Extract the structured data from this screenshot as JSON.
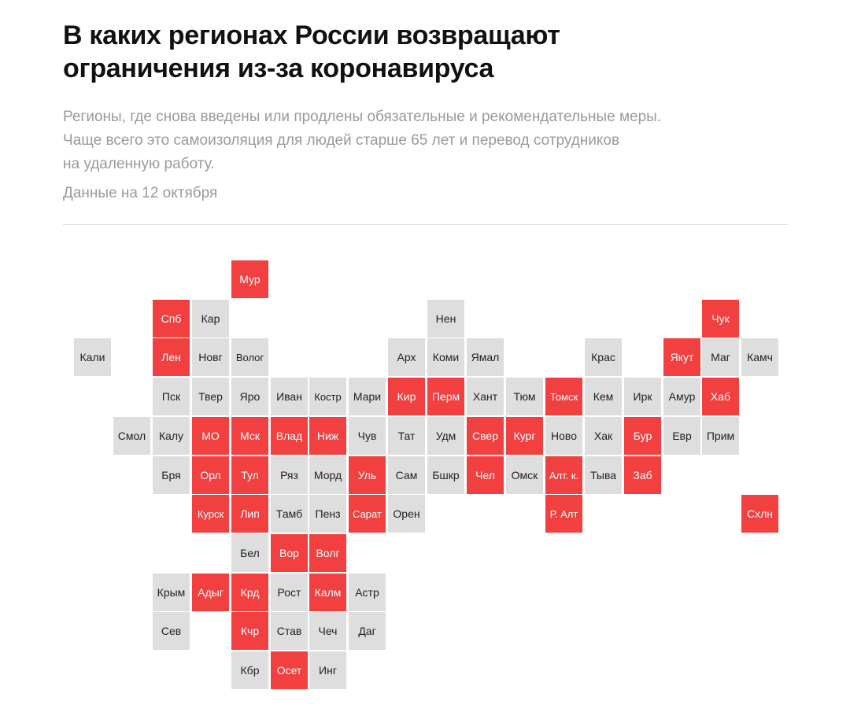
{
  "header": {
    "title_line1": "В каких регионах России возвращают",
    "title_line2": "ограничения из-за коронавируса",
    "subtitle_line1": "Регионы, где снова введены или продлены обязательные и рекомендательные меры.",
    "subtitle_line2": "Чаще всего это самоизоляция для людей старше 65 лет и перевод сотрудников",
    "subtitle_line3": "на удаленную работу.",
    "date": "Данные на 12 октября"
  },
  "colors": {
    "restricted": "#f23f3f",
    "normal": "#dedede"
  },
  "regions": [
    {
      "label": "Мур",
      "row": 0,
      "col": 4,
      "restricted": true
    },
    {
      "label": "Спб",
      "row": 1,
      "col": 2,
      "restricted": true
    },
    {
      "label": "Кар",
      "row": 1,
      "col": 3,
      "restricted": false
    },
    {
      "label": "Нен",
      "row": 1,
      "col": 9,
      "restricted": false
    },
    {
      "label": "Чук",
      "row": 1,
      "col": 16,
      "restricted": true
    },
    {
      "label": "Кали",
      "row": 2,
      "col": 0,
      "restricted": false
    },
    {
      "label": "Лен",
      "row": 2,
      "col": 2,
      "restricted": true
    },
    {
      "label": "Новг",
      "row": 2,
      "col": 3,
      "restricted": false
    },
    {
      "label": "Волог",
      "row": 2,
      "col": 4,
      "restricted": false
    },
    {
      "label": "Арх",
      "row": 2,
      "col": 8,
      "restricted": false
    },
    {
      "label": "Коми",
      "row": 2,
      "col": 9,
      "restricted": false
    },
    {
      "label": "Ямал",
      "row": 2,
      "col": 10,
      "restricted": false
    },
    {
      "label": "Крас",
      "row": 2,
      "col": 13,
      "restricted": false
    },
    {
      "label": "Якут",
      "row": 2,
      "col": 15,
      "restricted": true
    },
    {
      "label": "Маг",
      "row": 2,
      "col": 16,
      "restricted": false
    },
    {
      "label": "Камч",
      "row": 2,
      "col": 17,
      "restricted": false
    },
    {
      "label": "Пск",
      "row": 3,
      "col": 2,
      "restricted": false
    },
    {
      "label": "Твер",
      "row": 3,
      "col": 3,
      "restricted": false
    },
    {
      "label": "Яро",
      "row": 3,
      "col": 4,
      "restricted": false
    },
    {
      "label": "Иван",
      "row": 3,
      "col": 5,
      "restricted": false
    },
    {
      "label": "Костр",
      "row": 3,
      "col": 6,
      "restricted": false
    },
    {
      "label": "Мари",
      "row": 3,
      "col": 7,
      "restricted": false
    },
    {
      "label": "Кир",
      "row": 3,
      "col": 8,
      "restricted": true
    },
    {
      "label": "Перм",
      "row": 3,
      "col": 9,
      "restricted": true
    },
    {
      "label": "Хант",
      "row": 3,
      "col": 10,
      "restricted": false
    },
    {
      "label": "Тюм",
      "row": 3,
      "col": 11,
      "restricted": false
    },
    {
      "label": "Томск",
      "row": 3,
      "col": 12,
      "restricted": true
    },
    {
      "label": "Кем",
      "row": 3,
      "col": 13,
      "restricted": false
    },
    {
      "label": "Ирк",
      "row": 3,
      "col": 14,
      "restricted": false
    },
    {
      "label": "Амур",
      "row": 3,
      "col": 15,
      "restricted": false
    },
    {
      "label": "Хаб",
      "row": 3,
      "col": 16,
      "restricted": true
    },
    {
      "label": "Смол",
      "row": 4,
      "col": 1,
      "restricted": false
    },
    {
      "label": "Калу",
      "row": 4,
      "col": 2,
      "restricted": false
    },
    {
      "label": "МО",
      "row": 4,
      "col": 3,
      "restricted": true
    },
    {
      "label": "Мск",
      "row": 4,
      "col": 4,
      "restricted": true
    },
    {
      "label": "Влад",
      "row": 4,
      "col": 5,
      "restricted": true
    },
    {
      "label": "Ниж",
      "row": 4,
      "col": 6,
      "restricted": true
    },
    {
      "label": "Чув",
      "row": 4,
      "col": 7,
      "restricted": false
    },
    {
      "label": "Тат",
      "row": 4,
      "col": 8,
      "restricted": false
    },
    {
      "label": "Удм",
      "row": 4,
      "col": 9,
      "restricted": false
    },
    {
      "label": "Свер",
      "row": 4,
      "col": 10,
      "restricted": true
    },
    {
      "label": "Кург",
      "row": 4,
      "col": 11,
      "restricted": true
    },
    {
      "label": "Ново",
      "row": 4,
      "col": 12,
      "restricted": false
    },
    {
      "label": "Хак",
      "row": 4,
      "col": 13,
      "restricted": false
    },
    {
      "label": "Бур",
      "row": 4,
      "col": 14,
      "restricted": true
    },
    {
      "label": "Евр",
      "row": 4,
      "col": 15,
      "restricted": false
    },
    {
      "label": "Прим",
      "row": 4,
      "col": 16,
      "restricted": false
    },
    {
      "label": "Бря",
      "row": 5,
      "col": 2,
      "restricted": false
    },
    {
      "label": "Орл",
      "row": 5,
      "col": 3,
      "restricted": true
    },
    {
      "label": "Тул",
      "row": 5,
      "col": 4,
      "restricted": true
    },
    {
      "label": "Ряз",
      "row": 5,
      "col": 5,
      "restricted": false
    },
    {
      "label": "Морд",
      "row": 5,
      "col": 6,
      "restricted": false
    },
    {
      "label": "Уль",
      "row": 5,
      "col": 7,
      "restricted": true
    },
    {
      "label": "Сам",
      "row": 5,
      "col": 8,
      "restricted": false
    },
    {
      "label": "Бшкр",
      "row": 5,
      "col": 9,
      "restricted": false
    },
    {
      "label": "Чел",
      "row": 5,
      "col": 10,
      "restricted": true
    },
    {
      "label": "Омск",
      "row": 5,
      "col": 11,
      "restricted": false
    },
    {
      "label": "Алт. к.",
      "row": 5,
      "col": 12,
      "restricted": true
    },
    {
      "label": "Тыва",
      "row": 5,
      "col": 13,
      "restricted": false
    },
    {
      "label": "Заб",
      "row": 5,
      "col": 14,
      "restricted": true
    },
    {
      "label": "Курск",
      "row": 6,
      "col": 3,
      "restricted": true
    },
    {
      "label": "Лип",
      "row": 6,
      "col": 4,
      "restricted": true
    },
    {
      "label": "Тамб",
      "row": 6,
      "col": 5,
      "restricted": false
    },
    {
      "label": "Пенз",
      "row": 6,
      "col": 6,
      "restricted": false
    },
    {
      "label": "Сарат",
      "row": 6,
      "col": 7,
      "restricted": true
    },
    {
      "label": "Орен",
      "row": 6,
      "col": 8,
      "restricted": false
    },
    {
      "label": "Р. Алт",
      "row": 6,
      "col": 12,
      "restricted": true
    },
    {
      "label": "Схлн",
      "row": 6,
      "col": 17,
      "restricted": true
    },
    {
      "label": "Бел",
      "row": 7,
      "col": 4,
      "restricted": false
    },
    {
      "label": "Вор",
      "row": 7,
      "col": 5,
      "restricted": true
    },
    {
      "label": "Волг",
      "row": 7,
      "col": 6,
      "restricted": true
    },
    {
      "label": "Крым",
      "row": 8,
      "col": 2,
      "restricted": false
    },
    {
      "label": "Адыг",
      "row": 8,
      "col": 3,
      "restricted": true
    },
    {
      "label": "Крд",
      "row": 8,
      "col": 4,
      "restricted": true
    },
    {
      "label": "Рост",
      "row": 8,
      "col": 5,
      "restricted": false
    },
    {
      "label": "Калм",
      "row": 8,
      "col": 6,
      "restricted": true
    },
    {
      "label": "Астр",
      "row": 8,
      "col": 7,
      "restricted": false
    },
    {
      "label": "Сев",
      "row": 9,
      "col": 2,
      "restricted": false
    },
    {
      "label": "Кчр",
      "row": 9,
      "col": 4,
      "restricted": true
    },
    {
      "label": "Став",
      "row": 9,
      "col": 5,
      "restricted": false
    },
    {
      "label": "Чеч",
      "row": 9,
      "col": 6,
      "restricted": false
    },
    {
      "label": "Даг",
      "row": 9,
      "col": 7,
      "restricted": false
    },
    {
      "label": "Кбр",
      "row": 10,
      "col": 4,
      "restricted": false
    },
    {
      "label": "Осет",
      "row": 10,
      "col": 5,
      "restricted": true
    },
    {
      "label": "Инг",
      "row": 10,
      "col": 6,
      "restricted": false
    }
  ]
}
